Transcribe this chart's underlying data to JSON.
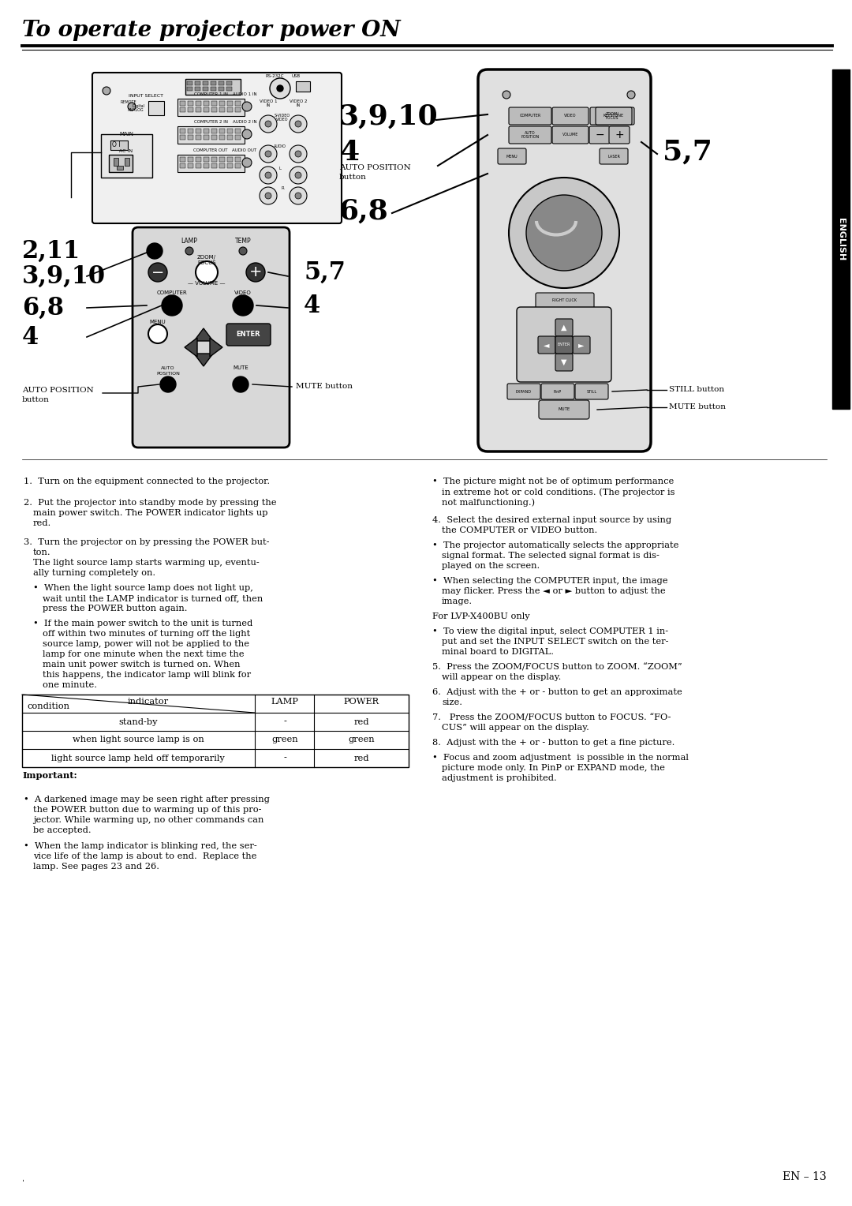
{
  "title": "To operate projector power ON",
  "bg_color": "#ffffff",
  "text_color": "#000000",
  "page_num": "EN – 13",
  "body_fs": 8.2,
  "left_texts": [
    [
      30,
      605,
      "1.  Turn on the equipment connected to the projector."
    ],
    [
      30,
      632,
      "2.  Put the projector into standby mode by pressing the"
    ],
    [
      42,
      645,
      "main power switch. The POWER indicator lights up"
    ],
    [
      42,
      658,
      "red."
    ],
    [
      30,
      682,
      "3.  Turn the projector on by pressing the POWER but-"
    ],
    [
      42,
      695,
      "ton."
    ],
    [
      42,
      708,
      "The light source lamp starts warming up, eventu-"
    ],
    [
      42,
      721,
      "ally turning completely on."
    ],
    [
      42,
      740,
      "•  When the light source lamp does not light up,"
    ],
    [
      54,
      753,
      "wait until the LAMP indicator is turned off, then"
    ],
    [
      54,
      766,
      "press the POWER button again."
    ],
    [
      42,
      785,
      "•  If the main power switch to the unit is turned"
    ],
    [
      54,
      798,
      "off within two minutes of turning off the light"
    ],
    [
      54,
      811,
      "source lamp, power will not be applied to the"
    ],
    [
      54,
      824,
      "lamp for one minute when the next time the"
    ],
    [
      54,
      837,
      "main unit power switch is turned on. When"
    ],
    [
      54,
      850,
      "this happens, the indicator lamp will blink for"
    ],
    [
      54,
      863,
      "one minute."
    ]
  ],
  "right_texts": [
    [
      548,
      605,
      "•  The picture might not be of optimum performance"
    ],
    [
      560,
      618,
      "in extreme hot or cold conditions. (The projector is"
    ],
    [
      560,
      631,
      "not malfunctioning.)"
    ],
    [
      548,
      654,
      "4.  Select the desired external input source by using"
    ],
    [
      560,
      667,
      "the COMPUTER or VIDEO button."
    ],
    [
      548,
      686,
      "•  The projector automatically selects the appropriate"
    ],
    [
      560,
      699,
      "signal format. The selected signal format is dis-"
    ],
    [
      560,
      712,
      "played on the screen."
    ],
    [
      548,
      731,
      "•  When selecting the COMPUTER input, the image"
    ],
    [
      560,
      744,
      "may flicker. Press the ◄ or ► button to adjust the"
    ],
    [
      560,
      757,
      "image."
    ],
    [
      548,
      776,
      "For LVP-X400BU only"
    ],
    [
      548,
      795,
      "•  To view the digital input, select COMPUTER 1 in-"
    ],
    [
      560,
      808,
      "put and set the INPUT SELECT switch on the ter-"
    ],
    [
      560,
      821,
      "minal board to DIGITAL."
    ],
    [
      548,
      840,
      "5.  Press the ZOOM/FOCUS button to ZOOM. “ZOOM”"
    ],
    [
      560,
      853,
      "will appear on the display."
    ],
    [
      548,
      872,
      "6.  Adjust with the + or - button to get an approximate"
    ],
    [
      560,
      885,
      "size."
    ],
    [
      548,
      904,
      "7.   Press the ZOOM/FOCUS button to FOCUS. “FO-"
    ],
    [
      560,
      917,
      "CUS” will appear on the display."
    ],
    [
      548,
      936,
      "8.  Adjust with the + or - button to get a fine picture."
    ],
    [
      548,
      955,
      "•  Focus and zoom adjustment  is possible in the normal"
    ],
    [
      560,
      968,
      "picture mode only. In PinP or EXPAND mode, the"
    ],
    [
      560,
      981,
      "adjustment is prohibited."
    ]
  ],
  "imp_texts": [
    [
      30,
      1008,
      "•  A darkened image may be seen right after pressing"
    ],
    [
      42,
      1021,
      "the POWER button due to warming up of this pro-"
    ],
    [
      42,
      1034,
      "jector. While warming up, no other commands can"
    ],
    [
      42,
      1047,
      "be accepted."
    ],
    [
      30,
      1067,
      "•  When the lamp indicator is blinking red, the ser-"
    ],
    [
      42,
      1080,
      "vice life of the lamp is about to end.  Replace the"
    ],
    [
      42,
      1093,
      "lamp. See pages 23 and 26."
    ]
  ]
}
